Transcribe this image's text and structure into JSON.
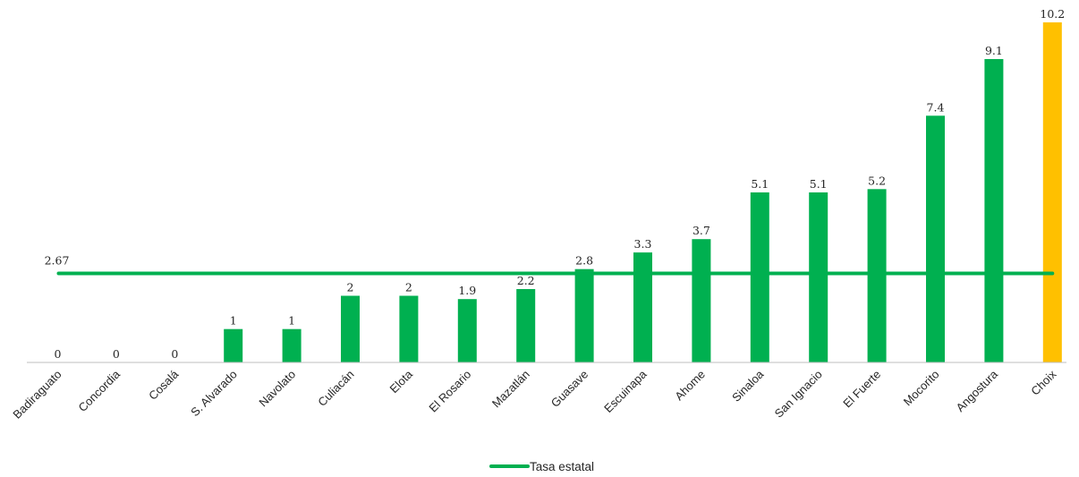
{
  "chart_data": {
    "type": "bar",
    "title": "",
    "xlabel": "",
    "ylabel": "",
    "ylim": [
      0,
      10.2
    ],
    "grid": false,
    "legend_position": "bottom",
    "categories": [
      "Badiraguato",
      "Concordia",
      "Cosalá",
      "S. Alvarado",
      "Navolato",
      "Culiacán",
      "Elota",
      "El Rosario",
      "Mazatlán",
      "Guasave",
      "Escuinapa",
      "Ahome",
      "Sinaloa",
      "San Ignacio",
      "El Fuerte",
      "Mocorito",
      "Angostura",
      "Choix"
    ],
    "values": [
      0,
      0,
      0,
      1,
      1,
      2,
      2,
      1.9,
      2.2,
      2.8,
      3.3,
      3.7,
      5.1,
      5.1,
      5.2,
      7.4,
      9.1,
      10.2
    ],
    "value_labels": [
      "0",
      "0",
      "0",
      "1",
      "1",
      "2",
      "2",
      "1.9",
      "2.2",
      "2.8",
      "3.3",
      "3.7",
      "5.1",
      "5.1",
      "5.2",
      "7.4",
      "9.1",
      "10.2"
    ],
    "highlight_category": "Choix",
    "reference_line": {
      "name": "Tasa estatal",
      "value": 2.67,
      "label": "2.67"
    },
    "colors": {
      "bar": "#00b050",
      "highlight": "#ffc000",
      "reference_line": "#00b050",
      "axis": "#bfbfbf",
      "text": "#262626"
    }
  }
}
